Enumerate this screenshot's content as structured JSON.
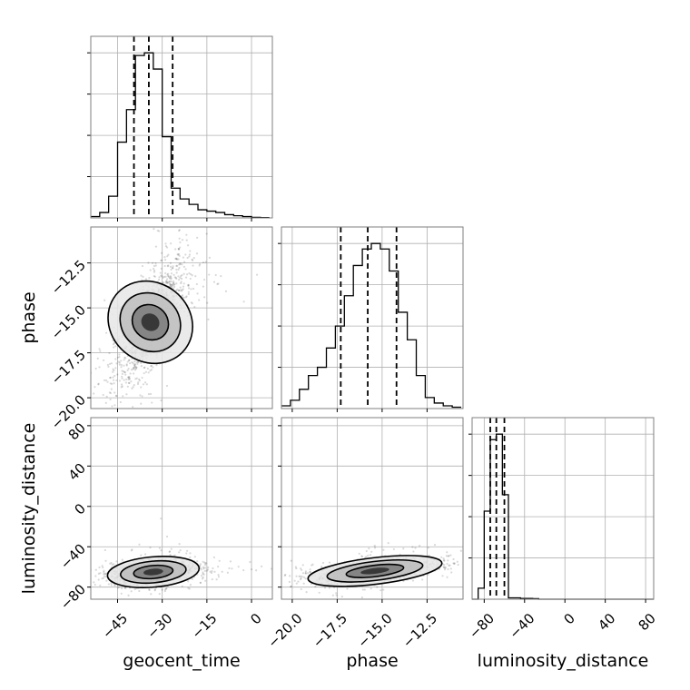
{
  "chart_data": {
    "type": "corner",
    "parameters": [
      "geocent_time",
      "phase",
      "luminosity_distance"
    ],
    "grid": true,
    "ranges": {
      "geocent_time": [
        -54,
        7
      ],
      "phase": [
        -20.6,
        -10.5
      ],
      "luminosity_distance": [
        -92,
        88
      ]
    },
    "ticks": {
      "geocent_time": {
        "values": [
          -45,
          -30,
          -15,
          0
        ],
        "labels": [
          "−45",
          "−30",
          "−15",
          "0"
        ]
      },
      "phase": {
        "values": [
          -20.0,
          -17.5,
          -15.0,
          -12.5
        ],
        "labels": [
          "−20.0",
          "−17.5",
          "−15.0",
          "−12.5"
        ]
      },
      "luminosity_distance": {
        "values": [
          -80,
          -40,
          0,
          40,
          80
        ],
        "labels": [
          "−80",
          "−40",
          "0",
          "40",
          "80"
        ]
      }
    },
    "histograms": {
      "geocent_time": {
        "bin_edges": [
          -54,
          -51,
          -48,
          -45,
          -42,
          -39,
          -36,
          -33,
          -30,
          -27,
          -24,
          -21,
          -18,
          -15,
          -12,
          -9,
          -6,
          -3,
          0,
          3,
          6
        ],
        "counts": [
          0.5,
          2,
          8,
          28,
          40,
          60,
          61,
          55,
          30,
          11,
          7,
          5,
          3,
          2.5,
          2,
          1.2,
          0.8,
          0.5,
          0.2,
          0.1
        ],
        "quantiles": [
          -39.5,
          -34.5,
          -26.5
        ]
      },
      "phase": {
        "bin_edges": [
          -20.6,
          -20.1,
          -19.6,
          -19.1,
          -18.6,
          -18.1,
          -17.6,
          -17.1,
          -16.6,
          -16.1,
          -15.6,
          -15.1,
          -14.6,
          -14.1,
          -13.6,
          -13.1,
          -12.6,
          -12.1,
          -11.6,
          -11.1,
          -10.6
        ],
        "counts": [
          1,
          3,
          7,
          12,
          15,
          22,
          30,
          41,
          52,
          58,
          60,
          58,
          50,
          35,
          25,
          12,
          4,
          2,
          1,
          0.5
        ],
        "quantiles": [
          -17.3,
          -15.8,
          -14.2
        ]
      },
      "luminosity_distance": {
        "bin_edges": [
          -92,
          -86,
          -80,
          -74,
          -68,
          -62,
          -56,
          -50,
          -44,
          -38,
          -32,
          -26,
          -20,
          -14,
          -8,
          -2,
          4,
          10,
          16,
          22,
          28,
          34,
          40,
          46,
          52,
          58,
          64,
          70,
          76,
          82,
          88
        ],
        "counts": [
          0,
          4,
          32,
          58,
          60,
          38,
          0.5,
          0.5,
          0.3,
          0.3,
          0.2,
          0,
          0,
          0,
          0,
          0,
          0,
          0,
          0,
          0,
          0,
          0,
          0,
          0,
          0,
          0,
          0,
          0,
          0,
          0
        ],
        "quantiles": [
          -74,
          -68,
          -60
        ]
      }
    },
    "pairs": [
      {
        "x": "geocent_time",
        "y": "phase",
        "center": [
          -34,
          -15.8
        ],
        "spread": [
          6,
          1.7
        ],
        "correlation": 0.75
      },
      {
        "x": "geocent_time",
        "y": "luminosity_distance",
        "center": [
          -33,
          -65
        ],
        "spread": [
          7,
          6
        ],
        "correlation": 0.3
      },
      {
        "x": "phase",
        "y": "luminosity_distance",
        "center": [
          -15.4,
          -64
        ],
        "spread": [
          1.7,
          6
        ],
        "correlation": 0.6
      }
    ]
  }
}
